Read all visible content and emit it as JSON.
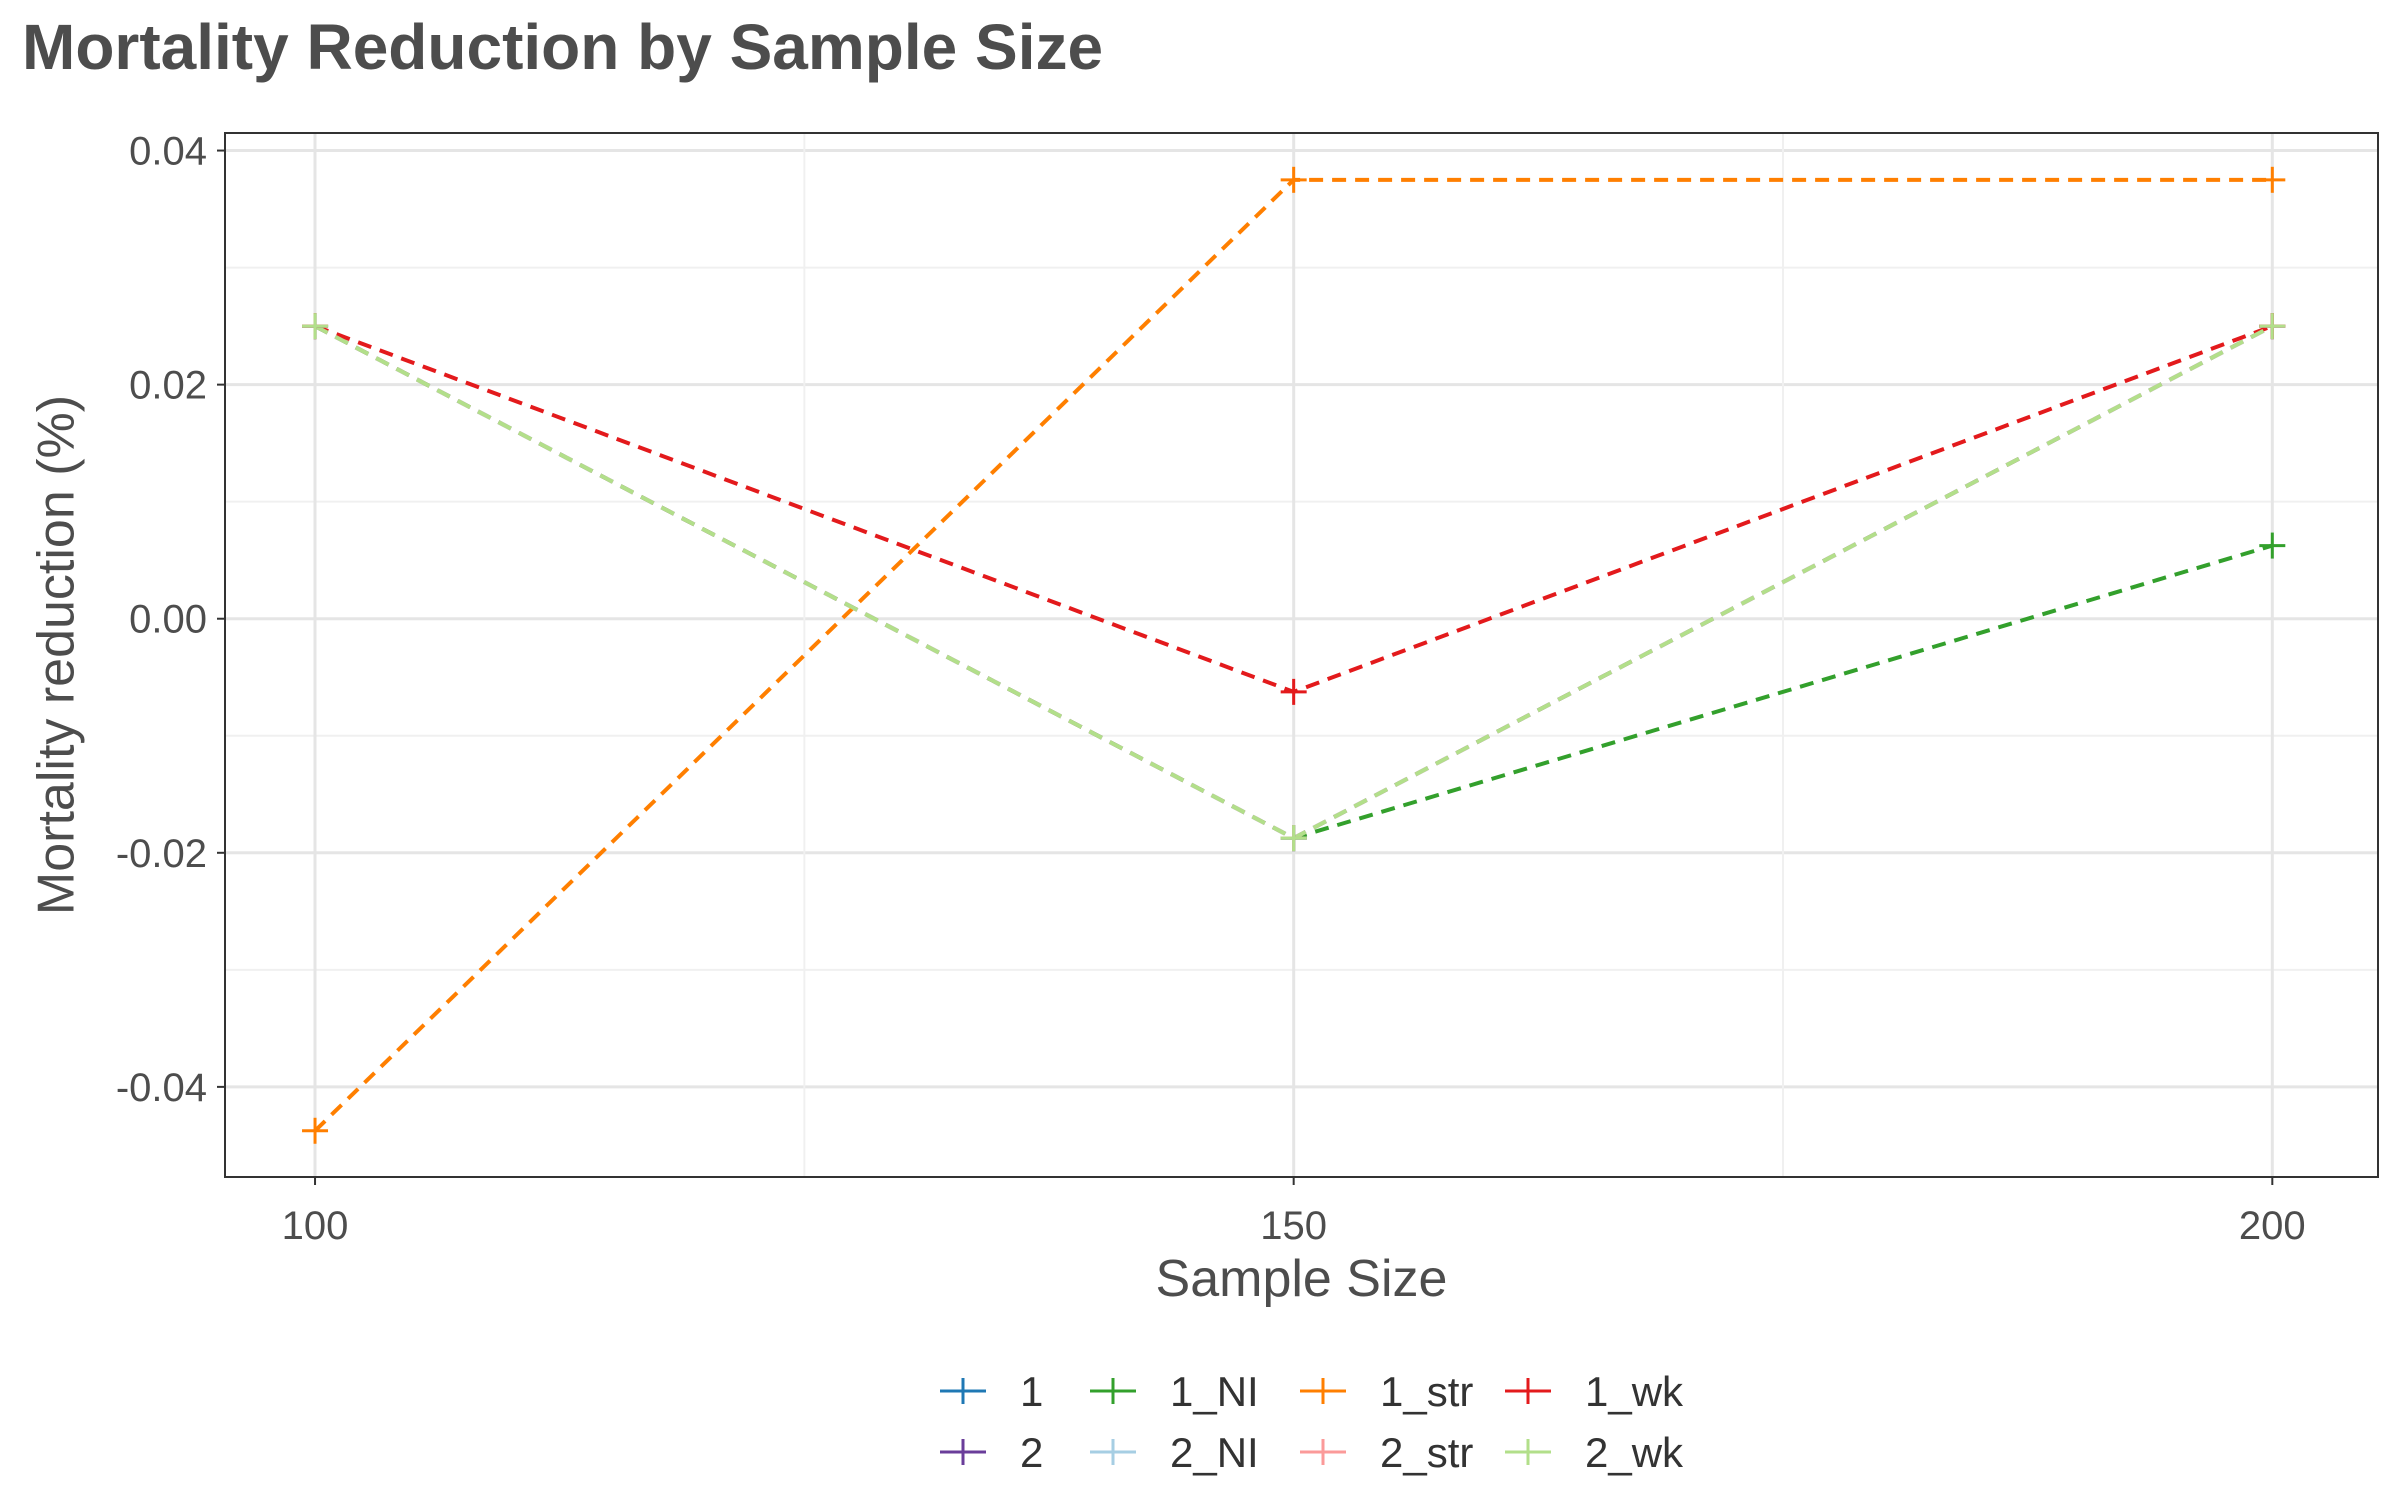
{
  "chart_data": {
    "type": "line",
    "title": "Mortality Reduction by Sample Size",
    "xlabel": "Sample Size",
    "ylabel": "Mortality reduction (%)",
    "x": [
      100,
      150,
      200
    ],
    "x_ticks": [
      "100",
      "150",
      "200"
    ],
    "y_ticks": [
      "0.04",
      "0.02",
      "0.00",
      "-0.02",
      "-0.04"
    ],
    "y_tick_values": [
      0.04,
      0.02,
      0.0,
      -0.02,
      -0.04
    ],
    "xlim": [
      95.4,
      205.4
    ],
    "ylim": [
      -0.0477,
      0.0415
    ],
    "grid": true,
    "legend_position": "bottom",
    "line_style": "dashed",
    "marker": "plus",
    "series": [
      {
        "name": "1",
        "color": "#1f78b4",
        "values": [
          0.025,
          -0.01875,
          0.025
        ]
      },
      {
        "name": "2",
        "color": "#6a3d9a",
        "values": [
          0.025,
          -0.01875,
          0.025
        ]
      },
      {
        "name": "1_NI",
        "color": "#33a02c",
        "values": [
          0.025,
          -0.01875,
          0.00625
        ]
      },
      {
        "name": "2_NI",
        "color": "#a6cee3",
        "values": [
          0.025,
          -0.01875,
          0.025
        ]
      },
      {
        "name": "1_str",
        "color": "#ff7f00",
        "values": [
          -0.04375,
          0.0375,
          0.0375
        ]
      },
      {
        "name": "2_str",
        "color": "#fb9a99",
        "values": [
          0.025,
          -0.01875,
          0.025
        ]
      },
      {
        "name": "1_wk",
        "color": "#e31a1c",
        "values": [
          0.025,
          -0.00625,
          0.025
        ]
      },
      {
        "name": "2_wk",
        "color": "#b2df8a",
        "values": [
          0.025,
          -0.01875,
          0.025
        ]
      }
    ],
    "legend_rows": [
      [
        "1",
        "1_NI",
        "1_str",
        "1_wk"
      ],
      [
        "2",
        "2_NI",
        "2_str",
        "2_wk"
      ]
    ]
  }
}
